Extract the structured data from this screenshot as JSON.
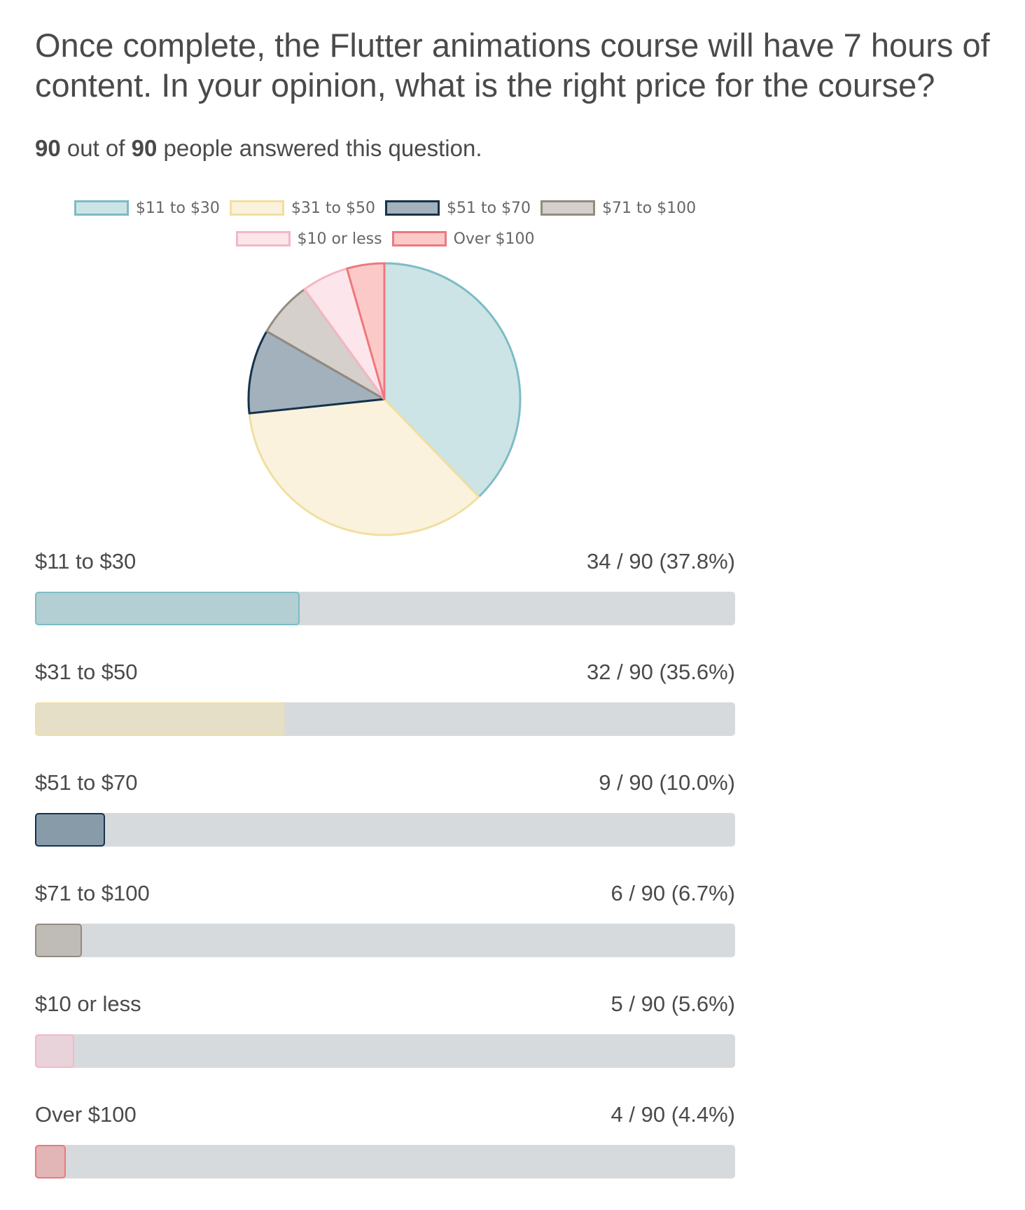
{
  "question": "Once complete, the Flutter animations course will have 7 hours of content. In your opinion, what is the right price for the course?",
  "answered": {
    "count": "90",
    "mid": " out of ",
    "total": "90",
    "suffix": " people answered this question."
  },
  "chart_data": {
    "type": "pie",
    "total": 90,
    "categories": [
      "$11 to $30",
      "$31 to $50",
      "$51 to $70",
      "$71 to $100",
      "$10 or less",
      "Over $100"
    ],
    "values": [
      34,
      32,
      9,
      6,
      5,
      4
    ],
    "legend_placement": "top",
    "colors": {
      "fill": [
        "#cde4e6",
        "#faf2dc",
        "#a3b1bc",
        "#d5d0cb",
        "#fde6eb",
        "#fcc9c9"
      ],
      "border": [
        "#7cbcc4",
        "#f1dfa1",
        "#15324d",
        "#938b7f",
        "#f4b7c4",
        "#ee787c"
      ],
      "bar_fill": [
        "#b3cfd3",
        "#e6dfc7",
        "#889ba8",
        "#bfbbb7",
        "#e9d3da",
        "#e2b5b6"
      ],
      "bar_border": [
        "#7cbcc4",
        "#f1dfa1",
        "#15324d",
        "#938b7f",
        "#f4b7c4",
        "#ee787c"
      ]
    }
  },
  "bars": [
    {
      "label": "$11 to $30",
      "value_text": "34 / 90 (37.8%)"
    },
    {
      "label": "$31 to $50",
      "value_text": "32 / 90 (35.6%)"
    },
    {
      "label": "$51 to $70",
      "value_text": "9 / 90 (10.0%)"
    },
    {
      "label": "$71 to $100",
      "value_text": "6 / 90 (6.7%)"
    },
    {
      "label": "$10 or less",
      "value_text": "5 / 90 (5.6%)"
    },
    {
      "label": "Over $100",
      "value_text": "4 / 90 (4.4%)"
    }
  ]
}
